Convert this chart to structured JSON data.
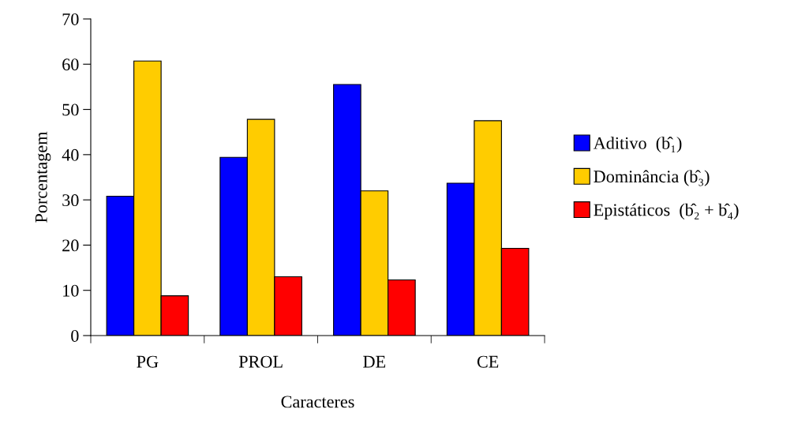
{
  "chart_data": {
    "type": "bar",
    "xlabel": "Caracteres",
    "ylabel": "Porcentagem",
    "categories": [
      "PG",
      "PROL",
      "DE",
      "CE"
    ],
    "series": [
      {
        "name": "Aditivo  (b̂₁)",
        "color": "#0000ff",
        "values": [
          30.8,
          39.4,
          55.5,
          33.7
        ]
      },
      {
        "name": "Dominância (b̂₃)",
        "color": "#ffcc00",
        "values": [
          60.7,
          47.8,
          32.0,
          47.5
        ]
      },
      {
        "name": "Epistáticos  (b̂₂ + b̂₄)",
        "color": "#ff0000",
        "values": [
          8.8,
          13.0,
          12.3,
          19.3
        ]
      }
    ],
    "ylim": [
      0,
      70
    ],
    "yticks": [
      0,
      10,
      20,
      30,
      40,
      50,
      60,
      70
    ],
    "grid": false,
    "legend": "right"
  }
}
